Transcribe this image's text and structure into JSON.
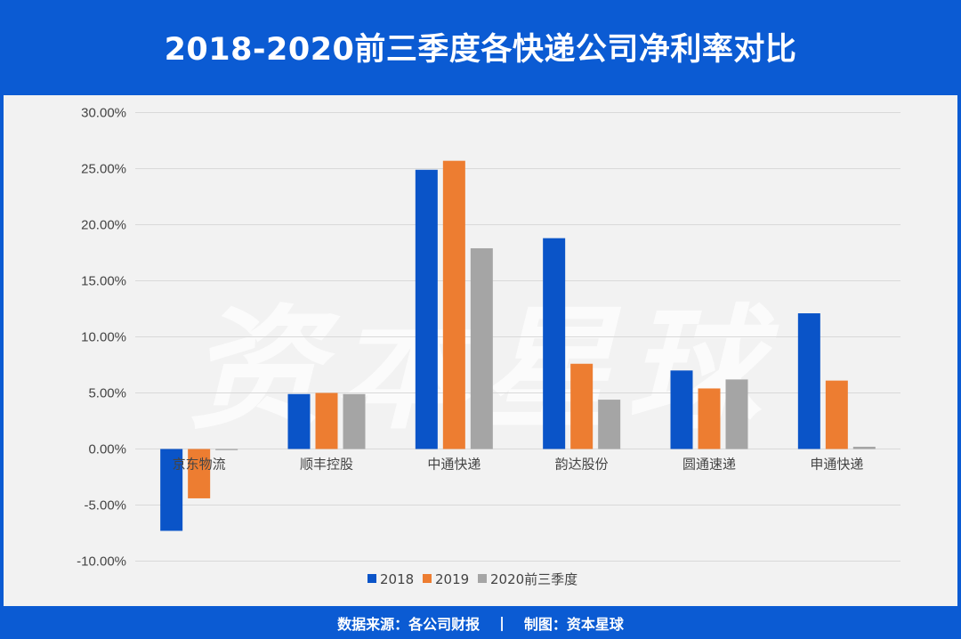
{
  "header": {
    "title": "2018-2020前三季度各快递公司净利率对比"
  },
  "footer": {
    "source": "数据来源：各公司财报",
    "separator": "|",
    "credit": "制图：资本星球"
  },
  "watermark": "资本星球",
  "colors": {
    "frame": "#0b5bd3",
    "panel": "#f2f2f2",
    "grid": "#d9d9d9"
  },
  "chart_data": {
    "type": "bar",
    "categories": [
      "京东物流",
      "顺丰控股",
      "中通快递",
      "韵达股份",
      "圆通速递",
      "申通快递"
    ],
    "series": [
      {
        "name": "2018",
        "color": "#0a54c8",
        "values": [
          -7.3,
          4.9,
          24.9,
          18.8,
          7.0,
          12.1
        ]
      },
      {
        "name": "2019",
        "color": "#ed7d31",
        "values": [
          -4.4,
          5.0,
          25.7,
          7.6,
          5.4,
          6.1
        ]
      },
      {
        "name": "2020前三季度",
        "color": "#a5a5a5",
        "values": [
          -0.1,
          4.9,
          17.9,
          4.4,
          6.2,
          0.2
        ]
      }
    ],
    "ylim": [
      -10,
      30
    ],
    "yticks": [
      30,
      25,
      20,
      15,
      10,
      5,
      0,
      -5,
      -10
    ],
    "ytick_labels": [
      "30.00%",
      "25.00%",
      "20.00%",
      "15.00%",
      "10.00%",
      "5.00%",
      "0.00%",
      "-5.00%",
      "-10.00%"
    ],
    "grid": true,
    "legend": "bottom-center"
  }
}
